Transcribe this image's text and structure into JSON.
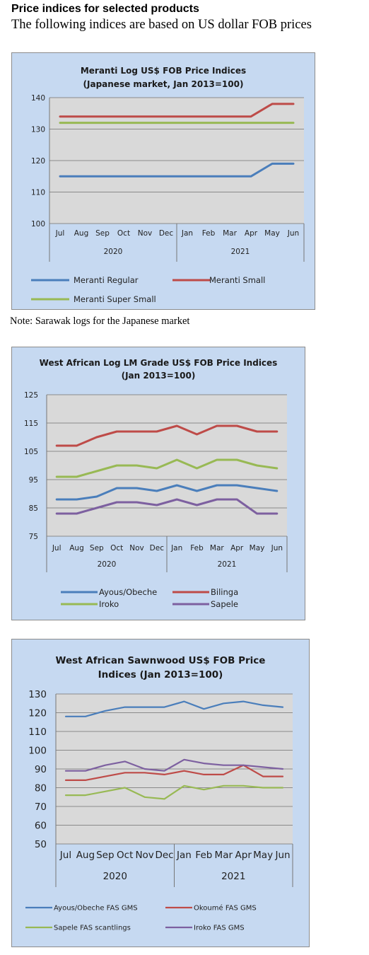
{
  "header": {
    "title": "Price indices for selected products",
    "subtitle": "The following indices are based on US dollar FOB prices"
  },
  "note": "Note: Sarawak logs for the Japanese market",
  "colors": {
    "blue": "#4a7ebb",
    "red": "#be4b48",
    "green": "#98b954",
    "purple": "#7d60a0",
    "panel_bg": "#c6d9f1",
    "plot_bg": "#d9d9d9"
  },
  "chart_data": [
    {
      "type": "line",
      "title_lines": [
        "Meranti Log US$ FOB Price Indices",
        "(Japanese market, Jan 2013=100)"
      ],
      "categories": [
        "Jul",
        "Aug",
        "Sep",
        "Oct",
        "Nov",
        "Dec",
        "Jan",
        "Feb",
        "Mar",
        "Apr",
        "May",
        "Jun"
      ],
      "groups": [
        "2020",
        "2021"
      ],
      "ylim": [
        100,
        140
      ],
      "yticks": [
        "100",
        "110",
        "120",
        "130",
        "140"
      ],
      "grid": true,
      "legend_position": "bottom",
      "series": [
        {
          "name": "Meranti Regular",
          "color": "#4a7ebb",
          "values": [
            115,
            115,
            115,
            115,
            115,
            115,
            115,
            115,
            115,
            115,
            119,
            119
          ]
        },
        {
          "name": "Meranti Small",
          "color": "#be4b48",
          "values": [
            134,
            134,
            134,
            134,
            134,
            134,
            134,
            134,
            134,
            134,
            138,
            138
          ]
        },
        {
          "name": "Meranti Super Small",
          "color": "#98b954",
          "values": [
            132,
            132,
            132,
            132,
            132,
            132,
            132,
            132,
            132,
            132,
            132,
            132
          ]
        }
      ]
    },
    {
      "type": "line",
      "title_lines": [
        "West African Log LM Grade US$ FOB Price Indices",
        "(Jan 2013=100)"
      ],
      "categories": [
        "Jul",
        "Aug",
        "Sep",
        "Oct",
        "Nov",
        "Dec",
        "Jan",
        "Feb",
        "Mar",
        "Apr",
        "May",
        "Jun"
      ],
      "groups": [
        "2020",
        "2021"
      ],
      "ylim": [
        75,
        125
      ],
      "yticks": [
        "75",
        "85",
        "95",
        "105",
        "115",
        "125"
      ],
      "grid": true,
      "legend_position": "bottom",
      "series": [
        {
          "name": "Ayous/Obeche",
          "color": "#4a7ebb",
          "values": [
            88,
            88,
            89,
            92,
            92,
            91,
            93,
            91,
            93,
            93,
            92,
            91
          ]
        },
        {
          "name": "Bilinga",
          "color": "#be4b48",
          "values": [
            107,
            107,
            110,
            112,
            112,
            112,
            114,
            111,
            114,
            114,
            112,
            112
          ]
        },
        {
          "name": "Iroko",
          "color": "#98b954",
          "values": [
            96,
            96,
            98,
            100,
            100,
            99,
            102,
            99,
            102,
            102,
            100,
            99
          ]
        },
        {
          "name": "Sapele",
          "color": "#7d60a0",
          "values": [
            83,
            83,
            85,
            87,
            87,
            86,
            88,
            86,
            88,
            88,
            83,
            83
          ]
        }
      ]
    },
    {
      "type": "line",
      "title_lines": [
        "West African Sawnwood US$ FOB Price",
        "Indices (Jan 2013=100)"
      ],
      "categories": [
        "Jul",
        "Aug",
        "Sep",
        "Oct",
        "Nov",
        "Dec",
        "Jan",
        "Feb",
        "Mar",
        "Apr",
        "May",
        "Jun"
      ],
      "groups": [
        "2020",
        "2021"
      ],
      "ylim": [
        50,
        130
      ],
      "yticks": [
        "50",
        "60",
        "70",
        "80",
        "90",
        "100",
        "110",
        "120",
        "130"
      ],
      "grid": true,
      "legend_position": "bottom",
      "series": [
        {
          "name": "Ayous/Obeche FAS GMS",
          "color": "#4a7ebb",
          "values": [
            118,
            118,
            121,
            123,
            123,
            123,
            126,
            122,
            125,
            126,
            124,
            123
          ]
        },
        {
          "name": "Okoumé FAS GMS",
          "color": "#be4b48",
          "values": [
            84,
            84,
            86,
            88,
            88,
            87,
            89,
            87,
            87,
            92,
            86,
            86
          ]
        },
        {
          "name": "Sapele FAS scantlings",
          "color": "#98b954",
          "values": [
            76,
            76,
            78,
            80,
            75,
            74,
            81,
            79,
            81,
            81,
            80,
            80
          ]
        },
        {
          "name": "Iroko FAS GMS",
          "color": "#7d60a0",
          "values": [
            89,
            89,
            92,
            94,
            90,
            89,
            95,
            93,
            92,
            92,
            91,
            90
          ]
        }
      ]
    }
  ]
}
